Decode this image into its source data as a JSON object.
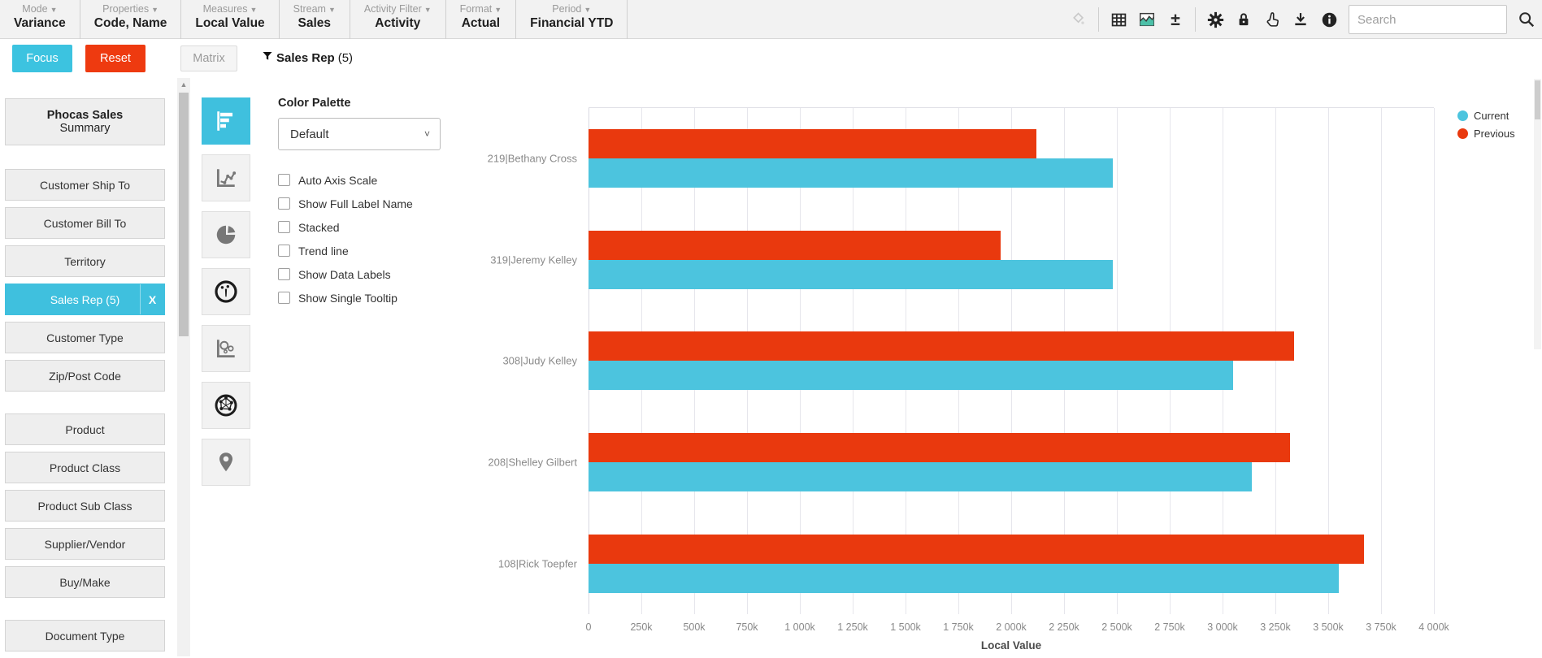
{
  "toolbar": {
    "menus": [
      {
        "label": "Mode",
        "value": "Variance"
      },
      {
        "label": "Properties",
        "value": "Code, Name"
      },
      {
        "label": "Measures",
        "value": "Local Value"
      },
      {
        "label": "Stream",
        "value": "Sales"
      },
      {
        "label": "Activity Filter",
        "value": "Activity"
      },
      {
        "label": "Format",
        "value": "Actual"
      },
      {
        "label": "Period",
        "value": "Financial YTD"
      }
    ],
    "right_icons": [
      "format-painter-icon",
      "table-view-icon",
      "chart-view-icon",
      "expand-collapse-icon",
      "settings-gear-icon",
      "lock-icon",
      "pointer-icon",
      "download-icon",
      "info-icon",
      "search-icon"
    ],
    "search": {
      "placeholder": "Search",
      "value": ""
    }
  },
  "action_bar": {
    "focus": "Focus",
    "reset": "Reset",
    "matrix": "Matrix",
    "filter": {
      "name": "Sales Rep",
      "count": "(5)"
    }
  },
  "sidebar": {
    "database": {
      "line1": "Phocas Sales",
      "line2": "Summary"
    },
    "groups": [
      [
        "Customer Ship To",
        "Customer Bill To",
        "Territory",
        "Sales Rep (5)",
        "Customer Type",
        "Zip/Post Code"
      ],
      [
        "Product",
        "Product Class",
        "Product Sub Class",
        "Supplier/Vendor",
        "Buy/Make"
      ],
      [
        "Document Type"
      ]
    ],
    "selected_item": "Sales Rep (5)",
    "close_label": "X"
  },
  "chart_type_toolbar": {
    "buttons": [
      {
        "name": "horizontal-bar-chart",
        "selected": true
      },
      {
        "name": "line-chart",
        "selected": false
      },
      {
        "name": "pie-chart",
        "selected": false
      },
      {
        "name": "gauge-chart",
        "selected": false
      },
      {
        "name": "bubble-chart",
        "selected": false
      },
      {
        "name": "radar-chart",
        "selected": false
      },
      {
        "name": "map",
        "selected": false
      }
    ]
  },
  "options_panel": {
    "color_palette_label": "Color Palette",
    "color_palette_value": "Default",
    "checkboxes": [
      {
        "label": "Auto Axis Scale",
        "checked": false
      },
      {
        "label": "Show Full Label Name",
        "checked": false
      },
      {
        "label": "Stacked",
        "checked": false
      },
      {
        "label": "Trend line",
        "checked": false
      },
      {
        "label": "Show Data Labels",
        "checked": false
      },
      {
        "label": "Show Single Tooltip",
        "checked": false
      }
    ]
  },
  "chart_data": {
    "type": "bar",
    "orientation": "horizontal",
    "categories": [
      "219|Bethany Cross",
      "319|Jeremy Kelley",
      "308|Judy Kelley",
      "208|Shelley Gilbert",
      "108|Rick Toepfer"
    ],
    "series": [
      {
        "name": "Current",
        "color": "#4CC4DE",
        "values": [
          2480000,
          2480000,
          3050000,
          3140000,
          3550000
        ]
      },
      {
        "name": "Previous",
        "color": "#E9390E",
        "values": [
          2120000,
          1950000,
          3340000,
          3320000,
          3670000
        ]
      }
    ],
    "bar_order_in_group": [
      "Previous",
      "Current"
    ],
    "xlabel": "Local Value",
    "xlim": [
      0,
      4000000
    ],
    "tick_step": 250000,
    "tick_labels": [
      "0",
      "250k",
      "500k",
      "750k",
      "1 000k",
      "1 250k",
      "1 500k",
      "1 750k",
      "2 000k",
      "2 250k",
      "2 500k",
      "2 750k",
      "3 000k",
      "3 250k",
      "3 500k",
      "3 750k",
      "4 000k"
    ],
    "grid": true,
    "legend_position": "top-right"
  },
  "colors": {
    "accent_teal": "#3FC0DE",
    "accent_red": "#EE3A10",
    "current_series": "#4CC4DE",
    "previous_series": "#E9390E",
    "toolbar_bg": "#F2F2F2",
    "sidebar_item_bg": "#EEEEEE"
  }
}
